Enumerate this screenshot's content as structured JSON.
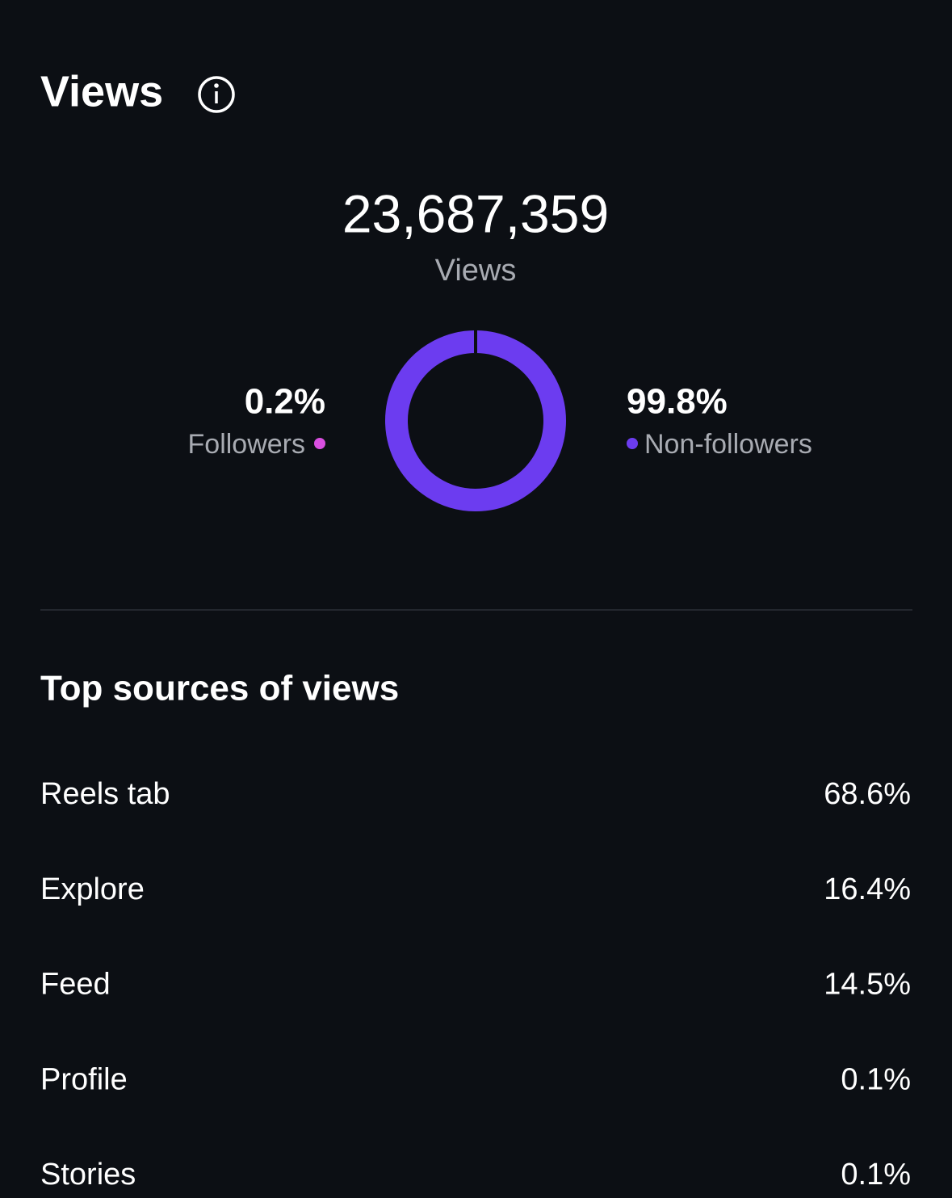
{
  "header": {
    "title": "Views"
  },
  "total": {
    "value": "23,687,359",
    "label": "Views"
  },
  "chart_data": {
    "type": "donut",
    "categories": [
      "Followers",
      "Non-followers"
    ],
    "values": [
      0.2,
      99.8
    ],
    "value_labels": [
      "0.2%",
      "99.8%"
    ],
    "colors": [
      "#d94fe0",
      "#6c3cf0"
    ]
  },
  "sources": {
    "title": "Top sources of views",
    "rows": [
      {
        "name": "Reels tab",
        "value": "68.6%"
      },
      {
        "name": "Explore",
        "value": "16.4%"
      },
      {
        "name": "Feed",
        "value": "14.5%"
      },
      {
        "name": "Profile",
        "value": "0.1%"
      },
      {
        "name": "Stories",
        "value": "0.1%"
      }
    ]
  }
}
